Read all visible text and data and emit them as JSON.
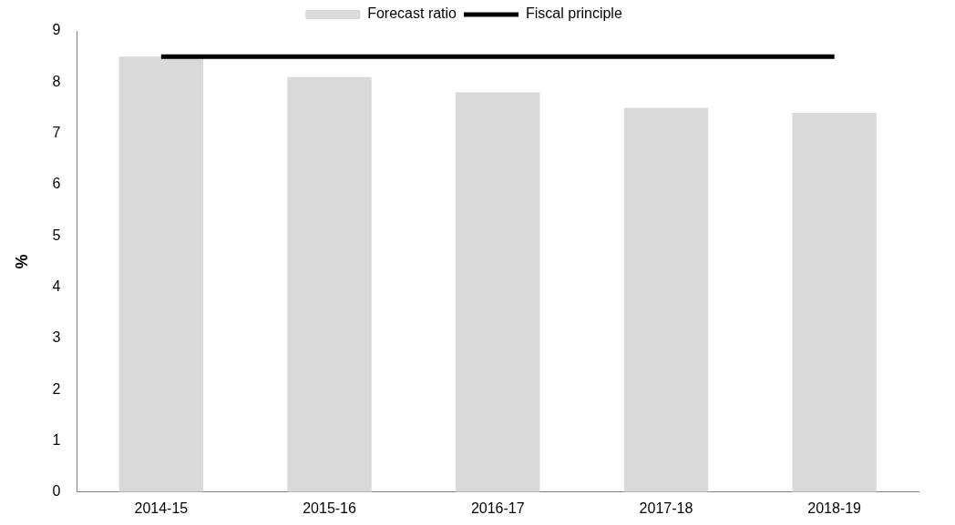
{
  "chart_data": {
    "type": "bar",
    "ylabel": "%",
    "categories": [
      "2014-15",
      "2015-16",
      "2016-17",
      "2017-18",
      "2018-19"
    ],
    "series": [
      {
        "name": "Forecast ratio",
        "color": "#d9d9d9",
        "values": [
          8.5,
          8.1,
          7.8,
          7.5,
          7.4
        ]
      },
      {
        "name": "Fiscal principle",
        "type": "line",
        "color": "#000000",
        "values": [
          8.5,
          8.5,
          8.5,
          8.5,
          8.5
        ]
      }
    ],
    "ylim": [
      0,
      9
    ],
    "yticks": [
      0,
      1,
      2,
      3,
      4,
      5,
      6,
      7,
      8,
      9
    ],
    "grid": false,
    "legend": "top",
    "marker": "none"
  }
}
